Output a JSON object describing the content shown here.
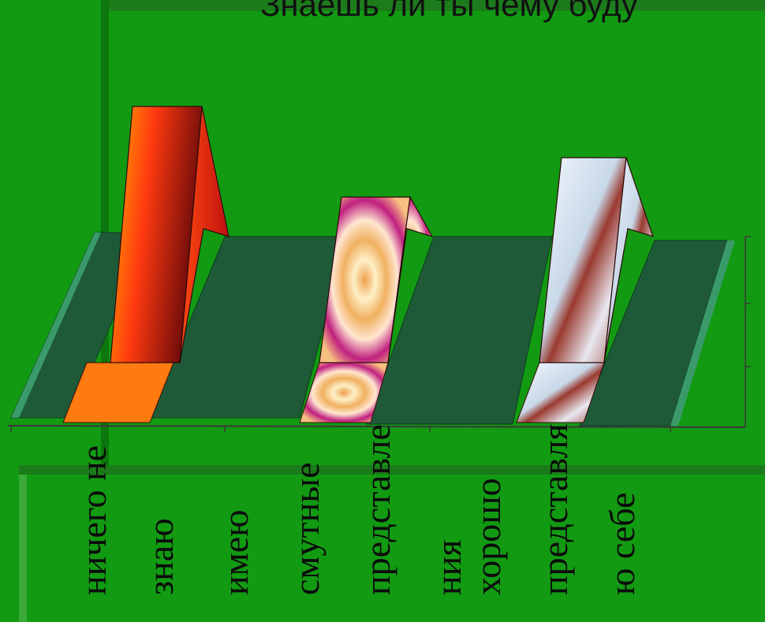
{
  "title": "Знаешь ли ты чему буду",
  "colors": {
    "background": "#129a12",
    "floor_face": "#1e5a38",
    "floor_edge": "#3a9a6a",
    "bar_ne_znayu": "#e0201a",
    "bar_smutnye": "#e8a040",
    "bar_khorosho": "#d8e4f0"
  },
  "chart_data": {
    "type": "bar",
    "style": "3d-column",
    "title": "Знаешь ли ты чему буду",
    "categories": [
      "ничего не знаю",
      "имею смутные представле ния",
      "хорошо представля ю себе"
    ],
    "values": [
      65,
      42,
      52
    ],
    "ylim": [
      0,
      100
    ],
    "grid": false,
    "legend": "none",
    "tick_label_lines": [
      [
        "ничего не",
        "знаю"
      ],
      [
        "имею",
        "смутные",
        "представле",
        "ния"
      ],
      [
        "хорошо",
        "представля",
        "ю себе"
      ]
    ]
  }
}
